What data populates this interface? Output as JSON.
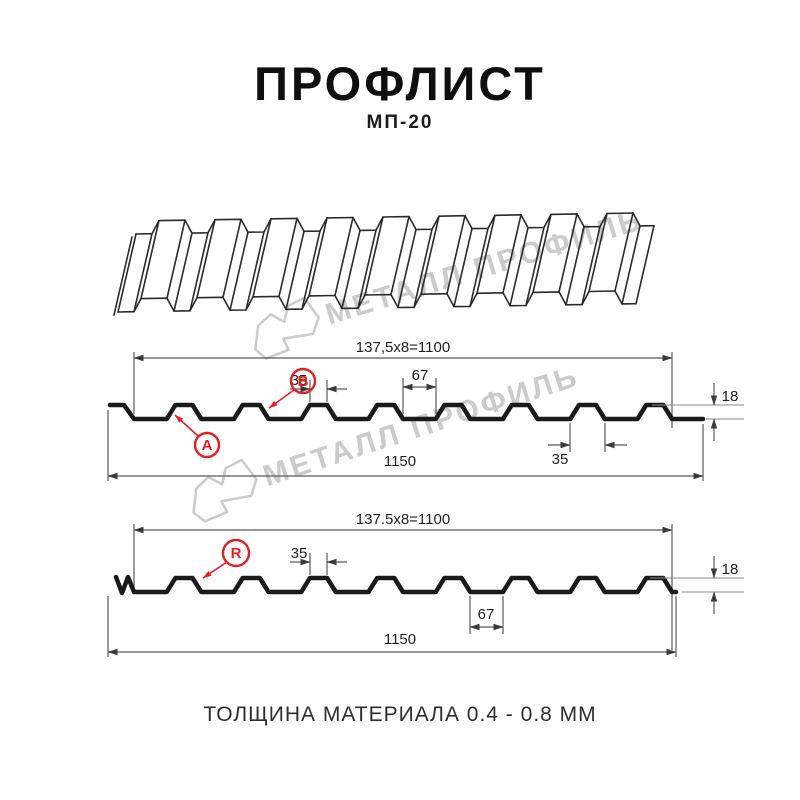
{
  "title": "ПРОФЛИСТ",
  "subtitle": "МП-20",
  "footer": "ТОЛЩИНА МАТЕРИАЛА 0.4 - 0.8 ММ",
  "watermark": {
    "text": "МЕТАЛЛ ПРОФИЛЬ"
  },
  "colors": {
    "accent_red": "#e31e24",
    "profile_line": "#1a1a1a",
    "dim_line": "#5a5a5a",
    "watermark": "#cbcbcb"
  },
  "diagram_top": {
    "modules_width": "137,5x8=1100",
    "total_width": "1150",
    "rib_top_width": "35",
    "valley_width": "67",
    "rib_base_width": "35",
    "height": "18",
    "label_a": "A",
    "label_b": "B"
  },
  "diagram_bottom": {
    "modules_width": "137.5x8=1100",
    "total_width": "1150",
    "rib_top_width": "35",
    "valley_width": "67",
    "height": "18",
    "label_r": "R"
  }
}
